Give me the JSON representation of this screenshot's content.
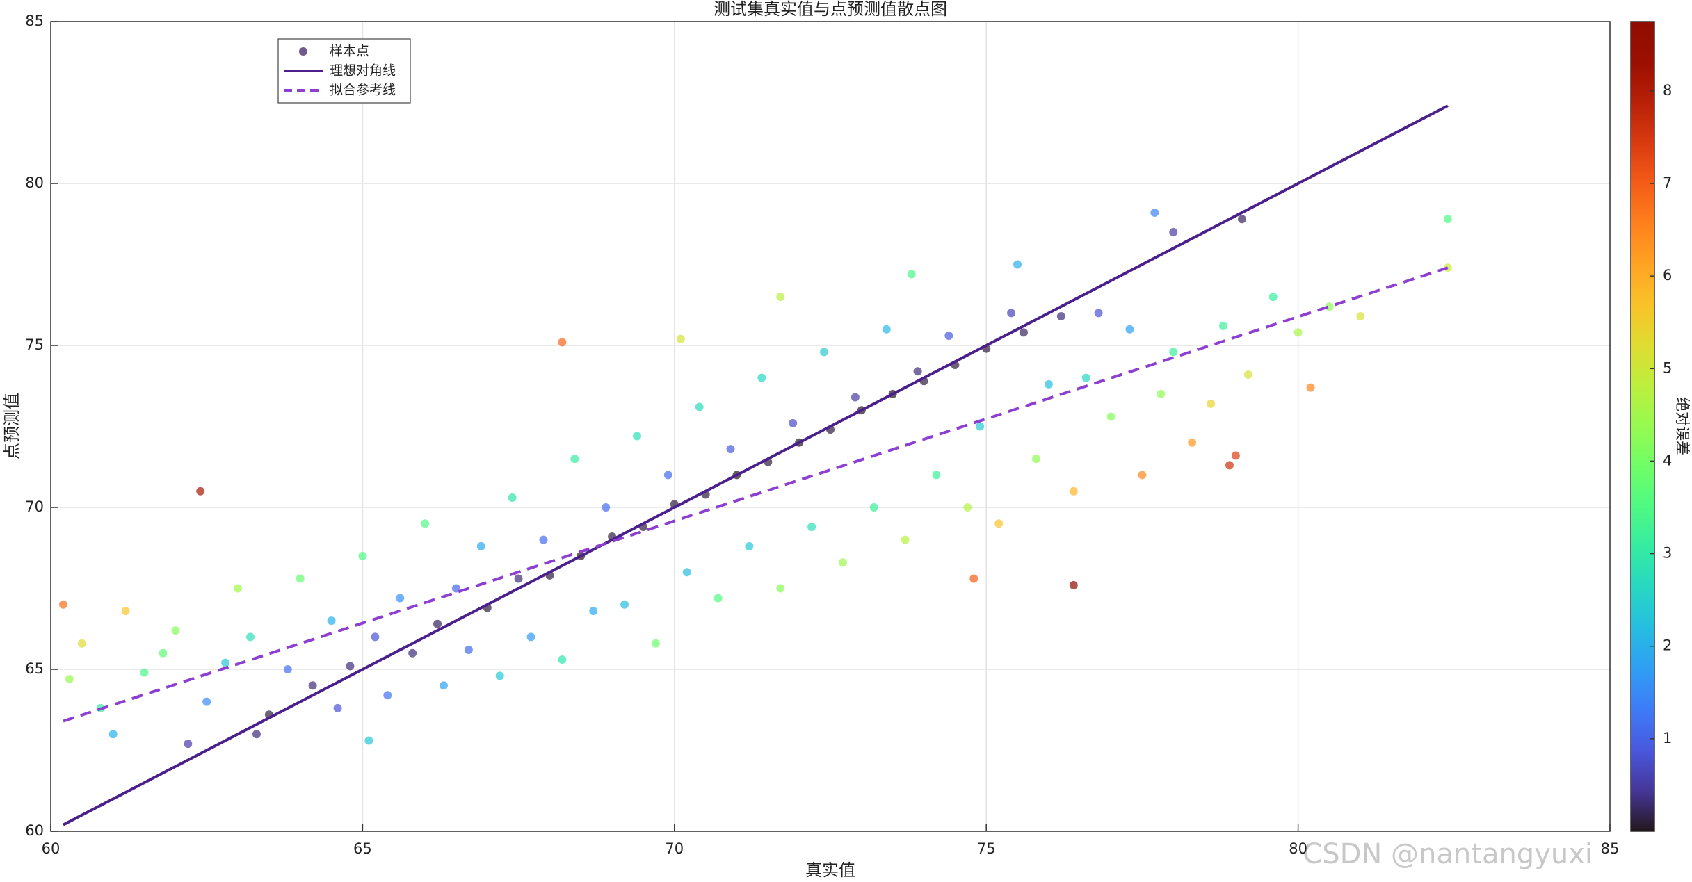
{
  "chart_data": {
    "type": "scatter",
    "title": "测试集真实值与点预测值散点图",
    "x_label": "真实值",
    "y_label": "点预测值",
    "xlim": [
      60,
      85
    ],
    "xticks": [
      60,
      65,
      70,
      75,
      80,
      85
    ],
    "ylim": [
      60,
      85
    ],
    "yticks": [
      60,
      65,
      70,
      75,
      80,
      85
    ],
    "grid": true,
    "legend": "upper left",
    "annotation": "CSDN @nantangyuxi",
    "colorbar": {
      "label": "绝对误差",
      "colormap": "turbo",
      "lim": [
        0,
        8.75
      ],
      "ticks": [
        1,
        2,
        3,
        4,
        5,
        6,
        7,
        8
      ]
    },
    "series": [
      {
        "name": "样本点",
        "type": "scatter",
        "color": "#6e5a8c",
        "x": [
          60.5,
          60.8,
          61.2,
          61.5,
          61.8,
          62.0,
          62.5,
          62.8,
          63.0,
          63.2,
          63.5,
          63.8,
          64.0,
          64.2,
          64.5,
          64.6,
          64.8,
          65.0,
          65.2,
          65.4,
          65.6,
          65.8,
          66.0,
          66.2,
          66.3,
          66.5,
          66.7,
          66.9,
          67.0,
          67.2,
          67.4,
          67.5,
          67.7,
          67.9,
          68.0,
          68.2,
          68.4,
          68.5,
          68.7,
          68.9,
          69.0,
          69.2,
          69.4,
          69.5,
          69.7,
          69.9,
          70.0,
          70.2,
          70.4,
          70.5,
          70.7,
          70.9,
          71.0,
          71.2,
          71.4,
          71.5,
          71.7,
          71.9,
          72.0,
          72.2,
          72.4,
          72.5,
          72.7,
          72.9,
          73.0,
          73.2,
          73.4,
          73.5,
          73.7,
          73.9,
          74.0,
          74.2,
          74.4,
          74.5,
          74.7,
          74.9,
          75.0,
          75.2,
          75.4,
          75.6,
          75.8,
          76.0,
          76.2,
          76.4,
          76.6,
          76.8,
          77.0,
          77.3,
          77.5,
          77.8,
          78.0,
          78.3,
          78.6,
          78.8,
          79.2,
          79.6,
          80.0,
          80.5,
          60.2,
          62.4,
          68.2,
          76.4,
          74.8,
          79.0,
          78.9,
          79.1,
          82.4,
          77.7,
          61.0,
          65.1,
          60.3,
          62.2,
          63.3,
          73.8,
          75.5,
          71.7,
          70.1,
          80.2,
          78.0,
          81.0,
          82.4
        ],
        "values": [
          65.8,
          63.8,
          66.8,
          64.9,
          65.5,
          66.2,
          64.0,
          65.2,
          67.5,
          66.0,
          63.6,
          65.0,
          67.8,
          64.5,
          66.5,
          63.8,
          65.1,
          68.5,
          66.0,
          64.2,
          67.2,
          65.5,
          69.5,
          66.4,
          64.5,
          67.5,
          65.6,
          68.8,
          66.9,
          64.8,
          70.3,
          67.8,
          66.0,
          69.0,
          67.9,
          65.3,
          71.5,
          68.5,
          66.8,
          70.0,
          69.1,
          67.0,
          72.2,
          69.4,
          65.8,
          71.0,
          70.1,
          68.0,
          73.1,
          70.4,
          67.2,
          71.8,
          71.0,
          68.8,
          74.0,
          71.4,
          67.5,
          72.6,
          72.0,
          69.4,
          74.8,
          72.4,
          68.3,
          73.4,
          73.0,
          70.0,
          75.5,
          73.5,
          69.0,
          74.2,
          73.9,
          71.0,
          75.3,
          74.4,
          70.0,
          72.5,
          74.9,
          69.5,
          76.0,
          75.4,
          71.5,
          73.8,
          75.9,
          70.5,
          74.0,
          76.0,
          72.8,
          75.5,
          71.0,
          73.5,
          74.8,
          72.0,
          73.2,
          75.6,
          74.1,
          76.5,
          75.4,
          76.2,
          67.0,
          70.5,
          75.1,
          67.6,
          67.8,
          71.6,
          71.3,
          78.9,
          78.9,
          79.1,
          63.0,
          62.8,
          64.7,
          62.7,
          63.0,
          77.2,
          77.5,
          76.5,
          75.2,
          73.7,
          78.5,
          75.9,
          77.4
        ]
      },
      {
        "name": "理想对角线",
        "type": "line",
        "color": "#4b1f8c",
        "x": [
          60.2,
          82.4
        ],
        "values": [
          60.2,
          82.4
        ]
      },
      {
        "name": "拟合参考线",
        "type": "line",
        "color": "#8c3fd0",
        "dashed": true,
        "x": [
          60.2,
          82.4
        ],
        "values": [
          63.4,
          77.4
        ]
      }
    ]
  }
}
